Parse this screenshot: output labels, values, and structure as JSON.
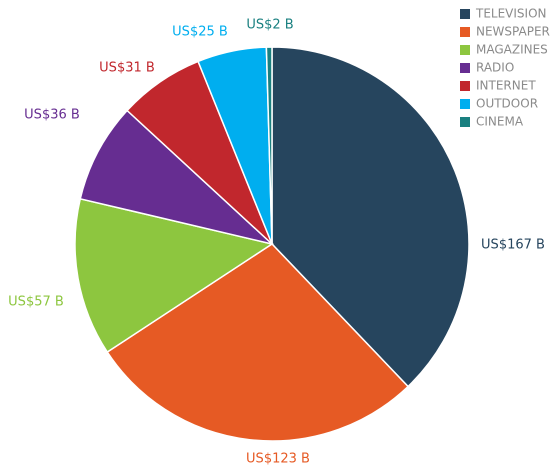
{
  "chart_data": {
    "type": "pie",
    "categories": [
      "TELEVISION",
      "NEWSPAPER",
      "MAGAZINES",
      "RADIO",
      "INTERNET",
      "OUTDOOR",
      "CINEMA"
    ],
    "values": [
      167,
      123,
      57,
      36,
      31,
      25,
      2
    ],
    "value_labels": [
      "US$167 B",
      "US$123 B",
      "US$57 B",
      "US$36 B",
      "US$31 B",
      "US$25 B",
      "US$2 B"
    ],
    "colors": [
      "#26455e",
      "#e65a24",
      "#8dc63f",
      "#662d91",
      "#c1272d",
      "#00aeef",
      "#1a8080"
    ],
    "legend": "top-right"
  }
}
